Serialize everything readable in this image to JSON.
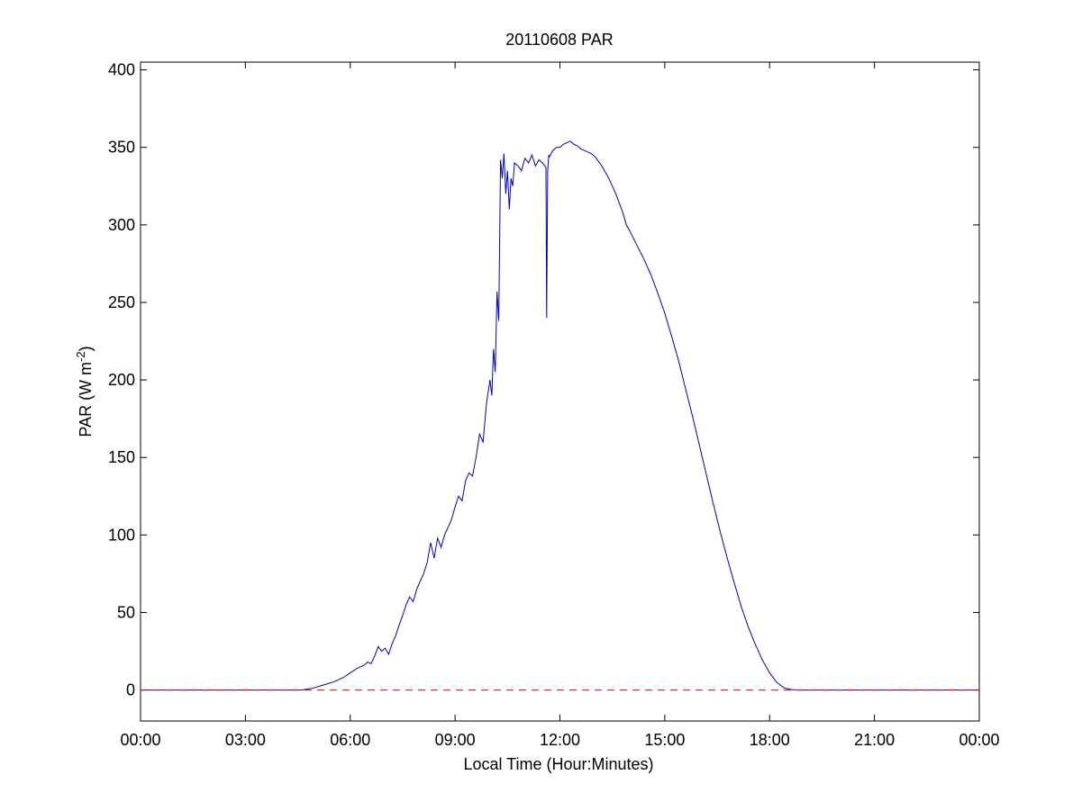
{
  "chart_data": {
    "type": "line",
    "title": "20110608 PAR",
    "xlabel": "Local Time (Hour:Minutes)",
    "ylabel": {
      "main": "PAR (W m",
      "superscript": "-2",
      "close": ")"
    },
    "x_unit": "hours",
    "xlim": [
      0,
      24
    ],
    "ylim": [
      -20,
      405
    ],
    "xticks": [
      0,
      3,
      6,
      9,
      12,
      15,
      18,
      21,
      24
    ],
    "xtick_labels": [
      "00:00",
      "03:00",
      "06:00",
      "09:00",
      "12:00",
      "15:00",
      "18:00",
      "21:00",
      "00:00"
    ],
    "yticks": [
      0,
      50,
      100,
      150,
      200,
      250,
      300,
      350,
      400
    ],
    "ytick_labels": [
      "0",
      "50",
      "100",
      "150",
      "200",
      "250",
      "300",
      "350",
      "400"
    ],
    "grid": false,
    "series": [
      {
        "color": "#0000cc",
        "style": "solid",
        "x": [
          0,
          4.6,
          4.9,
          5.2,
          5.5,
          5.8,
          6.0,
          6.2,
          6.4,
          6.5,
          6.6,
          6.7,
          6.8,
          6.9,
          7.0,
          7.1,
          7.2,
          7.3,
          7.4,
          7.5,
          7.6,
          7.7,
          7.8,
          7.9,
          8.0,
          8.1,
          8.2,
          8.3,
          8.4,
          8.5,
          8.6,
          8.7,
          8.8,
          8.9,
          9.0,
          9.1,
          9.2,
          9.3,
          9.4,
          9.5,
          9.6,
          9.7,
          9.8,
          9.9,
          10.0,
          10.05,
          10.1,
          10.15,
          10.2,
          10.25,
          10.3,
          10.35,
          10.4,
          10.45,
          10.5,
          10.55,
          10.6,
          10.65,
          10.7,
          10.8,
          10.9,
          11.0,
          11.1,
          11.2,
          11.3,
          11.4,
          11.5,
          11.6,
          11.62,
          11.65,
          11.68,
          11.7,
          11.8,
          11.9,
          12.0,
          12.1,
          12.2,
          12.3,
          12.4,
          12.5,
          12.6,
          12.7,
          12.8,
          12.9,
          13.0,
          13.1,
          13.2,
          13.3,
          13.4,
          13.5,
          13.6,
          13.7,
          13.8,
          13.9,
          14.0,
          14.2,
          14.4,
          14.6,
          14.8,
          15.0,
          15.2,
          15.4,
          15.6,
          15.8,
          16.0,
          16.2,
          16.4,
          16.6,
          16.8,
          17.0,
          17.2,
          17.4,
          17.6,
          17.8,
          18.0,
          18.2,
          18.4,
          18.6,
          18.8,
          19.0,
          19.2,
          19.4,
          24
        ],
        "y": [
          0,
          0,
          1,
          3,
          5,
          8,
          11,
          14,
          16,
          18,
          17,
          22,
          28,
          25,
          27,
          23,
          30,
          35,
          42,
          48,
          55,
          60,
          57,
          65,
          70,
          75,
          82,
          95,
          85,
          98,
          92,
          100,
          105,
          110,
          118,
          125,
          122,
          135,
          140,
          138,
          150,
          165,
          160,
          185,
          200,
          190,
          220,
          205,
          257,
          238,
          342,
          330,
          346,
          320,
          335,
          310,
          330,
          325,
          340,
          338,
          335,
          343,
          340,
          345,
          338,
          342,
          340,
          337,
          240,
          335,
          345,
          344,
          348,
          350,
          350,
          352,
          353,
          354,
          352,
          351,
          349,
          348,
          347,
          346,
          344,
          341,
          338,
          334,
          330,
          325,
          320,
          314,
          308,
          300,
          296,
          287,
          278,
          268,
          256,
          243,
          228,
          212,
          194,
          176,
          157,
          138,
          119,
          101,
          84,
          68,
          53,
          40,
          29,
          19,
          11,
          5,
          1.5,
          0.3,
          0,
          0,
          0,
          0,
          0
        ]
      },
      {
        "color": "#ff0000",
        "style": "dashed",
        "x": [
          0,
          24
        ],
        "y": [
          0,
          0
        ]
      }
    ]
  }
}
